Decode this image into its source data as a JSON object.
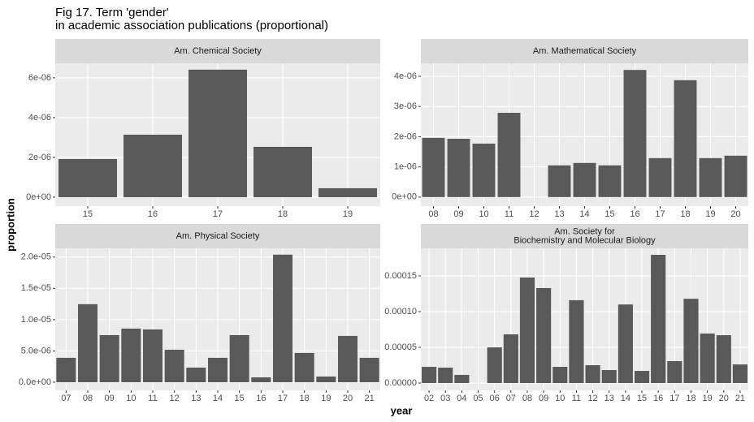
{
  "title": [
    "Fig 17.  Term 'gender'",
    "in academic association publications (proportional)"
  ],
  "x_label": "year",
  "y_label": "proportion",
  "chart_data": [
    {
      "type": "bar",
      "title": "Am. Chemical Society",
      "color": "#595959",
      "grid": true,
      "categories": [
        "15",
        "16",
        "17",
        "18",
        "19"
      ],
      "values": [
        1.92e-06,
        3.14e-06,
        6.41e-06,
        2.53e-06,
        4.5e-07
      ],
      "ylim": [
        -4.5e-07,
        6.73e-06
      ],
      "yticks": [
        {
          "value": 0,
          "label": "0e+00"
        },
        {
          "value": 2e-06,
          "label": "2e-06"
        },
        {
          "value": 4e-06,
          "label": "4e-06"
        },
        {
          "value": 6e-06,
          "label": "6e-06"
        }
      ]
    },
    {
      "type": "bar",
      "title": "Am. Mathematical Society",
      "color": "#595959",
      "grid": true,
      "categories": [
        "08",
        "09",
        "10",
        "11",
        "12",
        "13",
        "14",
        "15",
        "16",
        "17",
        "18",
        "19",
        "20"
      ],
      "values": [
        1.96e-06,
        1.93e-06,
        1.77e-06,
        2.79e-06,
        null,
        1.05e-06,
        1.13e-06,
        1.05e-06,
        4.21e-06,
        1.29e-06,
        3.87e-06,
        1.29e-06,
        1.37e-06
      ],
      "ylim": [
        -3e-07,
        4.43e-06
      ],
      "yticks": [
        {
          "value": 0,
          "label": "0e+00"
        },
        {
          "value": 1e-06,
          "label": "1e-06"
        },
        {
          "value": 2e-06,
          "label": "2e-06"
        },
        {
          "value": 3e-06,
          "label": "3e-06"
        },
        {
          "value": 4e-06,
          "label": "4e-06"
        }
      ]
    },
    {
      "type": "bar",
      "title": "Am. Physical Society",
      "color": "#595959",
      "grid": true,
      "categories": [
        "07",
        "08",
        "09",
        "10",
        "11",
        "12",
        "13",
        "14",
        "15",
        "16",
        "17",
        "18",
        "19",
        "20",
        "21"
      ],
      "values": [
        3.9e-06,
        1.247e-05,
        7.53e-06,
        8.57e-06,
        8.44e-06,
        5.19e-06,
        2.34e-06,
        3.9e-06,
        7.53e-06,
        7.8e-07,
        2.039e-05,
        4.68e-06,
        9.1e-07,
        7.4e-06,
        3.9e-06
      ],
      "ylim": [
        -1.3e-06,
        2.14e-05
      ],
      "yticks": [
        {
          "value": 0,
          "label": "0.0e+00"
        },
        {
          "value": 5e-06,
          "label": "5.0e-06"
        },
        {
          "value": 1e-05,
          "label": "1.0e-05"
        },
        {
          "value": 1.5e-05,
          "label": "1.5e-05"
        },
        {
          "value": 2e-05,
          "label": "2.0e-05"
        }
      ]
    },
    {
      "type": "bar",
      "title": [
        "Am. Society for",
        "Biochemistry and Molecular Biology"
      ],
      "color": "#595959",
      "grid": true,
      "categories": [
        "02",
        "03",
        "04",
        "05",
        "06",
        "07",
        "08",
        "09",
        "10",
        "11",
        "12",
        "13",
        "14",
        "15",
        "16",
        "17",
        "18",
        "19",
        "20",
        "21"
      ],
      "values": [
        2.27e-05,
        2.16e-05,
        1.14e-05,
        null,
        5e-05,
        6.82e-05,
        0.0001477,
        0.000133,
        2.27e-05,
        0.000116,
        2.5e-05,
        1.82e-05,
        0.00011,
        1.7e-05,
        0.0001795,
        3.07e-05,
        0.000118,
        6.93e-05,
        6.7e-05,
        2.61e-05
      ],
      "ylim": [
        -1.02e-05,
        0.0001886
      ],
      "yticks": [
        {
          "value": 0,
          "label": "0.00000"
        },
        {
          "value": 5e-05,
          "label": "0.00005"
        },
        {
          "value": 0.0001,
          "label": "0.00010"
        },
        {
          "value": 0.00015,
          "label": "0.00015"
        }
      ]
    }
  ]
}
